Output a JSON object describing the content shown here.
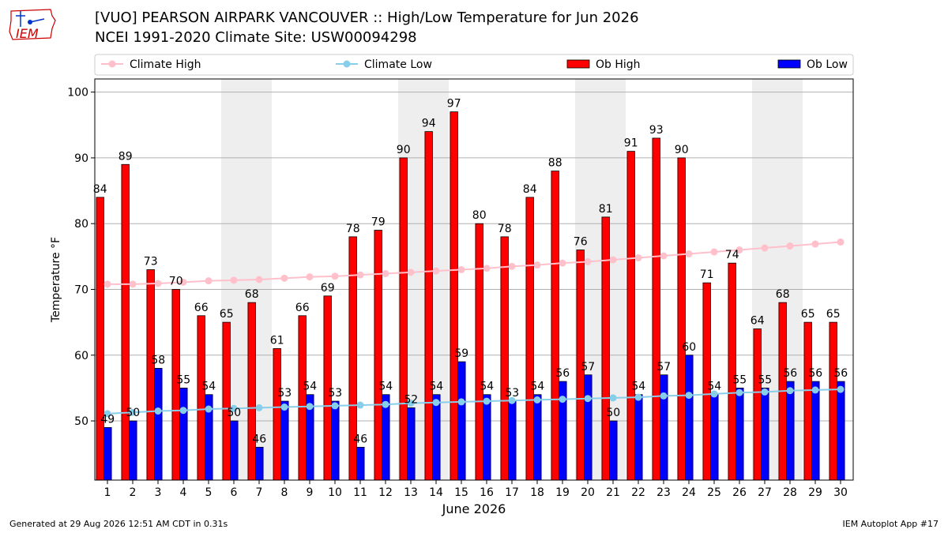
{
  "header": {
    "title_line1": "[VUO] PEARSON AIRPARK  VANCOUVER :: High/Low Temperature for Jun 2026",
    "title_line2": "NCEI 1991-2020 Climate Site: USW00094298",
    "logo_text": "IEM"
  },
  "footer": {
    "generated": "Generated at 29 Aug 2026 12:51 AM CDT in 0.31s",
    "app": "IEM Autoplot App #17"
  },
  "colors": {
    "ob_high": "#ff0000",
    "ob_low": "#0000ff",
    "climate_high": "#ffc0cb",
    "climate_low": "#87ceeb",
    "weekend_shade": "#eeeeee",
    "grid": "#b0b0b0",
    "logo": "#cc0000"
  },
  "chart_data": {
    "type": "bar",
    "xlabel": "June 2026",
    "ylabel": "Temperature °F",
    "ylim": [
      41,
      102
    ],
    "yticks": [
      50,
      60,
      70,
      80,
      90,
      100
    ],
    "grid": "horizontal",
    "legend_placement": "top",
    "days": [
      1,
      2,
      3,
      4,
      5,
      6,
      7,
      8,
      9,
      10,
      11,
      12,
      13,
      14,
      15,
      16,
      17,
      18,
      19,
      20,
      21,
      22,
      23,
      24,
      25,
      26,
      27,
      28,
      29,
      30
    ],
    "shaded_days": [
      6,
      7,
      13,
      14,
      20,
      21,
      27,
      28
    ],
    "series": [
      {
        "name": "Climate High",
        "kind": "line",
        "values": [
          70.8,
          70.8,
          70.9,
          71.1,
          71.3,
          71.4,
          71.5,
          71.7,
          71.9,
          72.0,
          72.2,
          72.4,
          72.6,
          72.8,
          73.0,
          73.2,
          73.5,
          73.7,
          74.0,
          74.2,
          74.5,
          74.8,
          75.1,
          75.4,
          75.7,
          76.0,
          76.3,
          76.6,
          76.9,
          77.2
        ]
      },
      {
        "name": "Climate Low",
        "kind": "line",
        "values": [
          51.1,
          51.3,
          51.5,
          51.6,
          51.8,
          51.9,
          52.0,
          52.1,
          52.2,
          52.3,
          52.4,
          52.5,
          52.7,
          52.8,
          52.9,
          53.0,
          53.1,
          53.2,
          53.3,
          53.4,
          53.5,
          53.6,
          53.8,
          53.9,
          54.1,
          54.3,
          54.4,
          54.6,
          54.7,
          54.8
        ]
      },
      {
        "name": "Ob High",
        "kind": "bar",
        "values": [
          84,
          89,
          73,
          70,
          66,
          65,
          68,
          61,
          66,
          69,
          78,
          79,
          90,
          94,
          97,
          80,
          78,
          84,
          88,
          76,
          81,
          91,
          93,
          90,
          71,
          74,
          64,
          68,
          65,
          65
        ]
      },
      {
        "name": "Ob Low",
        "kind": "bar",
        "values": [
          49,
          50,
          58,
          55,
          54,
          50,
          46,
          53,
          54,
          53,
          46,
          54,
          52,
          54,
          59,
          54,
          53,
          54,
          56,
          57,
          50,
          54,
          57,
          60,
          54,
          55,
          55,
          56,
          56,
          56
        ]
      }
    ]
  }
}
